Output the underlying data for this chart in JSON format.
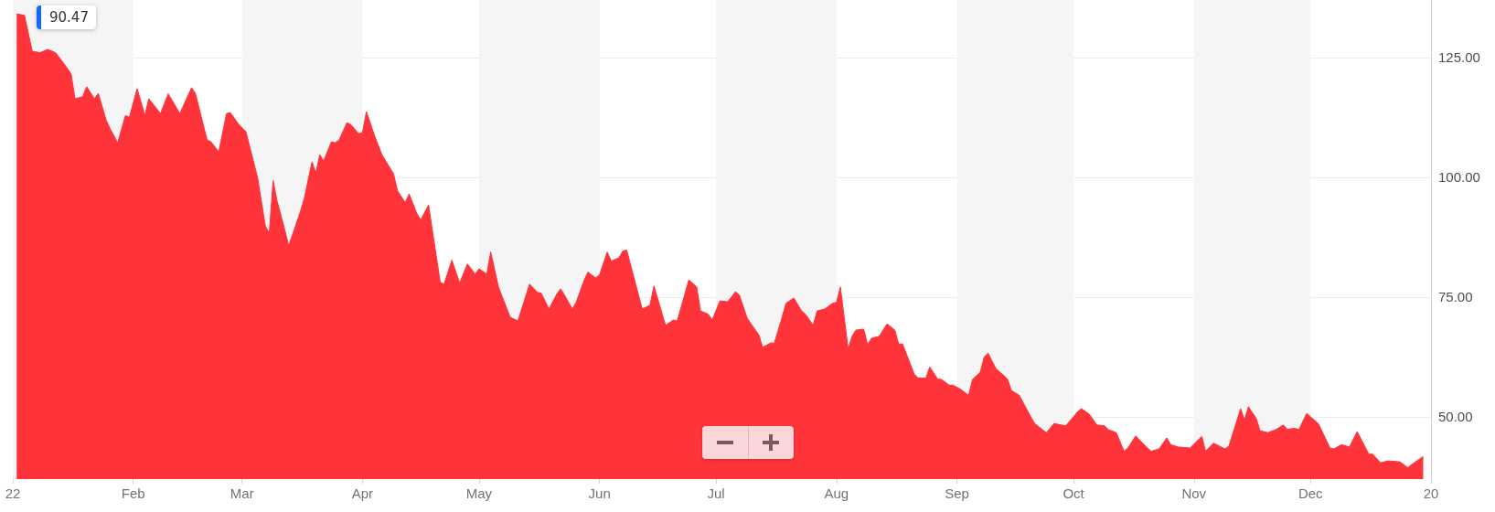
{
  "chart_data": {
    "type": "area",
    "annotations": [
      "90.47"
    ],
    "xlim": [
      "2022-01-01",
      "2023-01-01"
    ],
    "xticks": [
      {
        "value": "2022-01-01",
        "label": "22"
      },
      {
        "value": "2022-02-01",
        "label": "Feb"
      },
      {
        "value": "2022-03-01",
        "label": "Mar"
      },
      {
        "value": "2022-04-01",
        "label": "Apr"
      },
      {
        "value": "2022-05-01",
        "label": "May"
      },
      {
        "value": "2022-06-01",
        "label": "Jun"
      },
      {
        "value": "2022-07-01",
        "label": "Jul"
      },
      {
        "value": "2022-08-01",
        "label": "Aug"
      },
      {
        "value": "2022-09-01",
        "label": "Sep"
      },
      {
        "value": "2022-10-01",
        "label": "Oct"
      },
      {
        "value": "2022-11-01",
        "label": "Nov"
      },
      {
        "value": "2022-12-01",
        "label": "Dec"
      },
      {
        "value": "2023-01-01",
        "label": "20"
      }
    ],
    "ylim": [
      37,
      137
    ],
    "yticks": [
      {
        "value": 50,
        "label": "50.00"
      },
      {
        "value": 75,
        "label": "75.00"
      },
      {
        "value": 100,
        "label": "100.00"
      },
      {
        "value": 125,
        "label": "125.00"
      }
    ],
    "grid": "y",
    "bands": [
      {
        "axis": "x",
        "from": "2022-01-01",
        "to": "2022-02-01",
        "color": "#f5f5f5"
      },
      {
        "axis": "x",
        "from": "2022-03-01",
        "to": "2022-04-01",
        "color": "#f5f5f5"
      },
      {
        "axis": "x",
        "from": "2022-05-01",
        "to": "2022-06-01",
        "color": "#f5f5f5"
      },
      {
        "axis": "x",
        "from": "2022-07-01",
        "to": "2022-08-01",
        "color": "#f5f5f5"
      },
      {
        "axis": "x",
        "from": "2022-09-01",
        "to": "2022-10-01",
        "color": "#f5f5f5"
      },
      {
        "axis": "x",
        "from": "2022-11-01",
        "to": "2022-12-01",
        "color": "#f5f5f5"
      }
    ],
    "series": [
      {
        "color": "#ff333a",
        "x": [
          "2022-01-02",
          "2022-01-04",
          "2022-01-06",
          "2022-01-08",
          "2022-01-10",
          "2022-01-12",
          "2022-01-14",
          "2022-01-16",
          "2022-01-17",
          "2022-01-19",
          "2022-01-20",
          "2022-01-22",
          "2022-01-23",
          "2022-01-25",
          "2022-01-26",
          "2022-01-28",
          "2022-01-30",
          "2022-01-31",
          "2022-02-02",
          "2022-02-04",
          "2022-02-05",
          "2022-02-08",
          "2022-02-10",
          "2022-02-13",
          "2022-02-16",
          "2022-02-17",
          "2022-02-20",
          "2022-02-21",
          "2022-02-23",
          "2022-02-25",
          "2022-02-26",
          "2022-02-28",
          "2022-03-02",
          "2022-03-05",
          "2022-03-07",
          "2022-03-08",
          "2022-03-09",
          "2022-03-10",
          "2022-03-12",
          "2022-03-13",
          "2022-03-14",
          "2022-03-16",
          "2022-03-17",
          "2022-03-19",
          "2022-03-20",
          "2022-03-21",
          "2022-03-22",
          "2022-03-24",
          "2022-03-25",
          "2022-03-26",
          "2022-03-28",
          "2022-03-29",
          "2022-03-31",
          "2022-04-01",
          "2022-04-02",
          "2022-04-04",
          "2022-04-06",
          "2022-04-09",
          "2022-04-10",
          "2022-04-12",
          "2022-04-13",
          "2022-04-15",
          "2022-04-16",
          "2022-04-18",
          "2022-04-21",
          "2022-04-22",
          "2022-04-24",
          "2022-04-26",
          "2022-04-28",
          "2022-04-30",
          "2022-05-01",
          "2022-05-03",
          "2022-05-04",
          "2022-05-06",
          "2022-05-07",
          "2022-05-09",
          "2022-05-11",
          "2022-05-14",
          "2022-05-16",
          "2022-05-17",
          "2022-05-19",
          "2022-05-21",
          "2022-05-22",
          "2022-05-23",
          "2022-05-25",
          "2022-05-26",
          "2022-05-28",
          "2022-05-29",
          "2022-05-31",
          "2022-06-01",
          "2022-06-03",
          "2022-06-04",
          "2022-06-06",
          "2022-06-07",
          "2022-06-08",
          "2022-06-10",
          "2022-06-12",
          "2022-06-14",
          "2022-06-15",
          "2022-06-18",
          "2022-06-20",
          "2022-06-21",
          "2022-06-24",
          "2022-06-26",
          "2022-06-27",
          "2022-06-29",
          "2022-06-30",
          "2022-07-02",
          "2022-07-04",
          "2022-07-06",
          "2022-07-07",
          "2022-07-09",
          "2022-07-10",
          "2022-07-12",
          "2022-07-13",
          "2022-07-15",
          "2022-07-16",
          "2022-07-18",
          "2022-07-19",
          "2022-07-21",
          "2022-07-23",
          "2022-07-24",
          "2022-07-26",
          "2022-07-27",
          "2022-07-29",
          "2022-07-31",
          "2022-08-01",
          "2022-08-02",
          "2022-08-04",
          "2022-08-05",
          "2022-08-06",
          "2022-08-08",
          "2022-08-09",
          "2022-08-10",
          "2022-08-12",
          "2022-08-14",
          "2022-08-16",
          "2022-08-17",
          "2022-08-18",
          "2022-08-21",
          "2022-08-22",
          "2022-08-24",
          "2022-08-25",
          "2022-08-27",
          "2022-08-28",
          "2022-08-30",
          "2022-08-31",
          "2022-09-02",
          "2022-09-04",
          "2022-09-05",
          "2022-09-07",
          "2022-09-08",
          "2022-09-09",
          "2022-09-11",
          "2022-09-14",
          "2022-09-15",
          "2022-09-17",
          "2022-09-20",
          "2022-09-21",
          "2022-09-24",
          "2022-09-26",
          "2022-09-29",
          "2022-10-02",
          "2022-10-03",
          "2022-10-05",
          "2022-10-07",
          "2022-10-09",
          "2022-10-10",
          "2022-10-12",
          "2022-10-14",
          "2022-10-15",
          "2022-10-17",
          "2022-10-20",
          "2022-10-21",
          "2022-10-23",
          "2022-10-25",
          "2022-10-26",
          "2022-10-28",
          "2022-10-31",
          "2022-11-03",
          "2022-11-04",
          "2022-11-06",
          "2022-11-09",
          "2022-11-10",
          "2022-11-13",
          "2022-11-14",
          "2022-11-15",
          "2022-11-17",
          "2022-11-18",
          "2022-11-20",
          "2022-11-22",
          "2022-11-24",
          "2022-11-25",
          "2022-11-27",
          "2022-11-28",
          "2022-11-30",
          "2022-12-01",
          "2022-12-03",
          "2022-12-06",
          "2022-12-07",
          "2022-12-09",
          "2022-12-11",
          "2022-12-13",
          "2022-12-16",
          "2022-12-17",
          "2022-12-19",
          "2022-12-21",
          "2022-12-24",
          "2022-12-26",
          "2022-12-28",
          "2022-12-30"
        ],
        "values": [
          134.1,
          133.8,
          126.3,
          126,
          126.7,
          126,
          123.9,
          121.6,
          116.4,
          116.8,
          118.9,
          116.4,
          117.5,
          112,
          110.2,
          107.2,
          112.9,
          112.5,
          118.5,
          112.9,
          116.4,
          113.3,
          117.4,
          113.3,
          118.7,
          117.5,
          107.8,
          107.4,
          105.3,
          113.3,
          113.5,
          111.2,
          109.5,
          99.9,
          89.8,
          88.3,
          99.3,
          95.1,
          89,
          85.7,
          88,
          92.8,
          95.5,
          103.2,
          100.9,
          104.7,
          103.4,
          107.4,
          107.2,
          107.8,
          111.4,
          111,
          109.1,
          109.3,
          113.7,
          108.9,
          104.7,
          100.7,
          97.2,
          94.7,
          96.5,
          92.4,
          91.1,
          94.2,
          78.1,
          77.7,
          82.7,
          77.9,
          81.9,
          79.8,
          80.9,
          79.8,
          84.4,
          77.1,
          75,
          70.8,
          70,
          77.7,
          76,
          75.8,
          72.5,
          75.6,
          76.7,
          75.4,
          72.5,
          73.9,
          78.4,
          80.2,
          79,
          79.6,
          84.4,
          82.5,
          83.2,
          84.6,
          84.8,
          78.6,
          72.5,
          73.3,
          77.3,
          69.1,
          70.2,
          70,
          78.6,
          77.1,
          72.1,
          71.4,
          70.2,
          74.2,
          74,
          76.1,
          75.4,
          70.6,
          69.4,
          67.1,
          64.5,
          65.4,
          65.4,
          70.8,
          73.7,
          74.8,
          72.1,
          71.4,
          69.1,
          72.1,
          72.5,
          73.7,
          73.9,
          77.1,
          64.1,
          66.8,
          68.1,
          68.3,
          65,
          66.4,
          66.8,
          69.4,
          68.1,
          65.2,
          65.2,
          58.9,
          58.1,
          58.1,
          60.4,
          57.9,
          57.8,
          56.6,
          56.6,
          55.7,
          54.5,
          57.8,
          59.3,
          62.5,
          63.3,
          60.1,
          57.9,
          55.5,
          54.5,
          50,
          48.6,
          46.7,
          48.6,
          48.1,
          51,
          51.7,
          50.6,
          48.3,
          48.1,
          47.3,
          46.7,
          42.8,
          43.5,
          46,
          43.5,
          42.8,
          43.3,
          45.6,
          44.2,
          43.7,
          43.5,
          45.9,
          42.8,
          44.5,
          43.3,
          43.9,
          51.7,
          49.3,
          52.1,
          49.7,
          47.1,
          46.7,
          47.3,
          48.3,
          47.4,
          47.6,
          47.3,
          50.7,
          50,
          48.6,
          43.5,
          43.3,
          44.2,
          43.7,
          46.9,
          42.2,
          42.2,
          40.4,
          40.8,
          40.6,
          39.4,
          40.6,
          41.7
        ]
      }
    ]
  }
}
